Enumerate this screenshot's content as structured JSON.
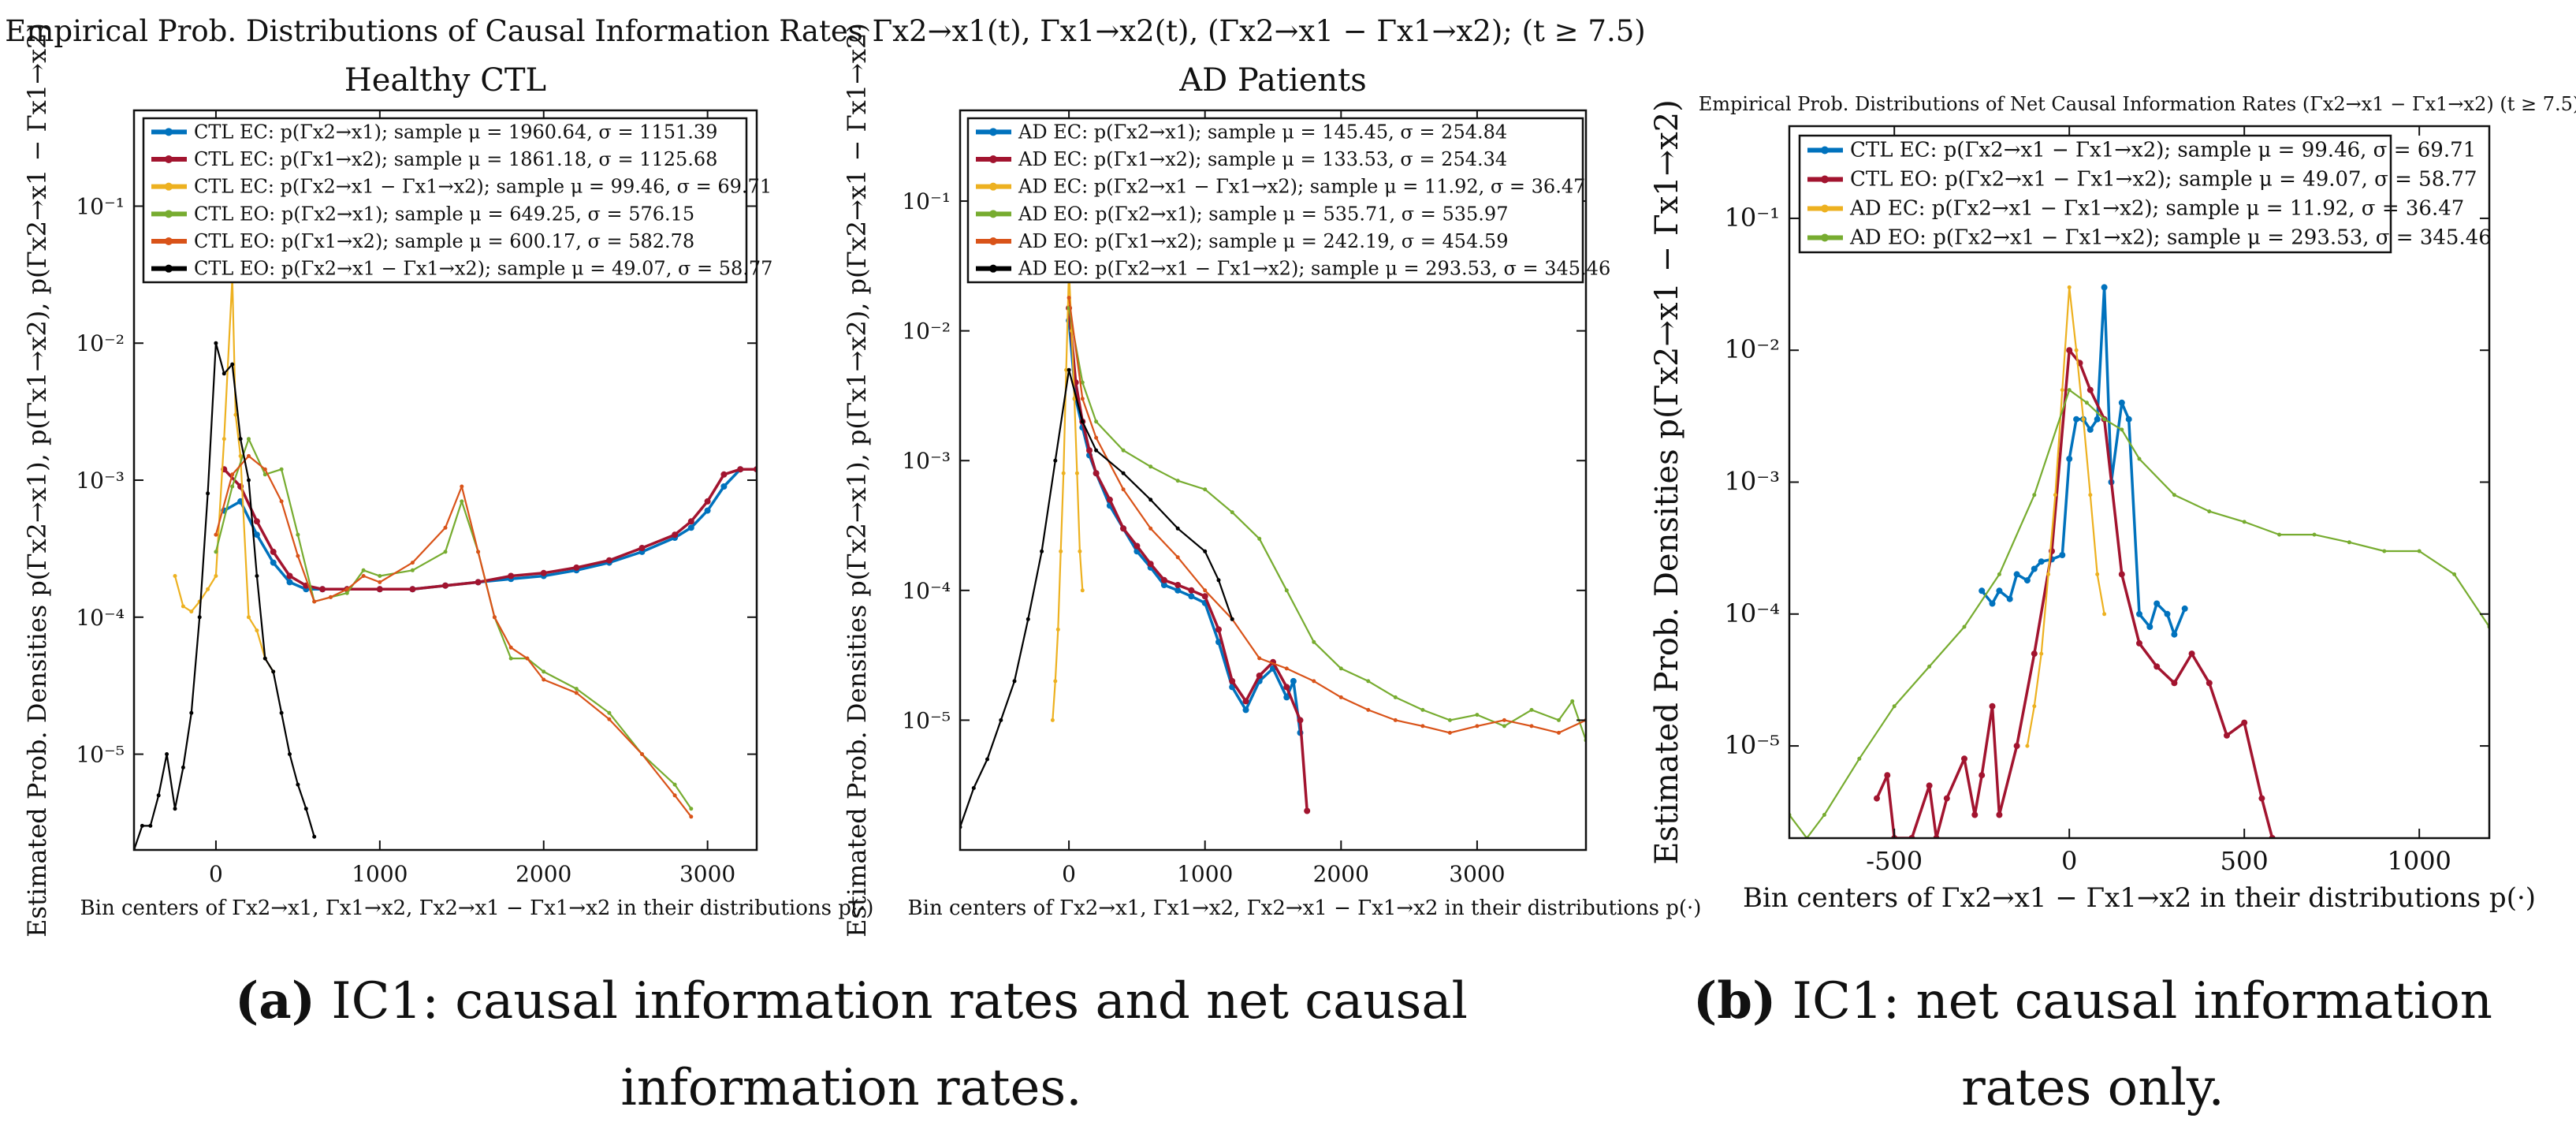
{
  "suptitle": "Empirical Prob. Distributions of Causal Information Rates Γx2→x1(t), Γx1→x2(t), (Γx2→x1 − Γx1→x2); (t ≥ 7.5)",
  "captions": [
    {
      "tag": "(a)",
      "text": "IC1: causal information rates and net causal information rates."
    },
    {
      "tag": "(b)",
      "text": "IC1: net causal information rates only."
    }
  ],
  "chart_data": [
    {
      "type": "line",
      "title": "Healthy CTL",
      "xlabel": "Bin centers of Γx2→x1, Γx1→x2, Γx2→x1 − Γx1→x2 in their distributions p(·)",
      "ylabel": "Estimated Prob. Densities p(Γx2→x1), p(Γx1→x2), p(Γx2→x1 − Γx1→x2)",
      "yscale": "log",
      "xlim": [
        -500,
        3300
      ],
      "ylim": [
        2e-06,
        0.5
      ],
      "xticks": [
        0,
        1000,
        2000,
        3000
      ],
      "yticks": [
        1e-05,
        0.0001,
        0.001,
        0.01,
        0.1
      ],
      "ytick_labels": [
        "10⁻⁵",
        "10⁻⁴",
        "10⁻³",
        "10⁻²",
        "10⁻¹"
      ],
      "legend_position": "top",
      "series": [
        {
          "name": "CTL EC: p(Γx2→x1); sample μ = 1960.64, σ = 1151.39",
          "color": "#0072BD",
          "x": [
            50,
            150,
            250,
            350,
            450,
            550,
            650,
            800,
            1000,
            1200,
            1400,
            1600,
            1800,
            2000,
            2200,
            2400,
            2600,
            2800,
            2900,
            3000,
            3100,
            3200,
            3300
          ],
          "y": [
            0.0006,
            0.0007,
            0.0004,
            0.00025,
            0.00018,
            0.00016,
            0.00016,
            0.00016,
            0.00016,
            0.00016,
            0.00017,
            0.00018,
            0.00019,
            0.0002,
            0.00022,
            0.00025,
            0.0003,
            0.00038,
            0.00045,
            0.0006,
            0.0009,
            0.0012,
            0.0012
          ]
        },
        {
          "name": "CTL EC: p(Γx1→x2); sample μ = 1861.18, σ = 1125.68",
          "color": "#A2142F",
          "x": [
            50,
            150,
            250,
            350,
            450,
            550,
            650,
            800,
            1000,
            1200,
            1400,
            1600,
            1800,
            2000,
            2200,
            2400,
            2600,
            2800,
            2900,
            3000,
            3100,
            3200,
            3300
          ],
          "y": [
            0.0012,
            0.0009,
            0.0005,
            0.0003,
            0.0002,
            0.00017,
            0.00016,
            0.00016,
            0.00016,
            0.00016,
            0.00017,
            0.00018,
            0.0002,
            0.00021,
            0.00023,
            0.00026,
            0.00032,
            0.0004,
            0.0005,
            0.0007,
            0.0011,
            0.0012,
            0.0012
          ]
        },
        {
          "name": "CTL EC: p(Γx2→x1 − Γx1→x2); sample μ = 99.46, σ = 69.71",
          "color": "#EDB120",
          "x": [
            -250,
            -200,
            -150,
            -100,
            -50,
            0,
            50,
            100,
            120,
            150,
            200,
            250,
            300,
            350
          ],
          "y": [
            0.0002,
            0.00012,
            0.00011,
            0.00013,
            0.00016,
            0.0002,
            0.002,
            0.03,
            0.003,
            0.0015,
            0.0001,
            8e-05,
            5e-05,
            4e-05
          ]
        },
        {
          "name": "CTL EO: p(Γx2→x1); sample μ = 649.25, σ = 576.15",
          "color": "#77AC30",
          "x": [
            0,
            100,
            200,
            300,
            400,
            500,
            600,
            700,
            800,
            900,
            1000,
            1200,
            1400,
            1500,
            1600,
            1700,
            1800,
            1900,
            2000,
            2200,
            2400,
            2600,
            2800,
            2900
          ],
          "y": [
            0.0003,
            0.0009,
            0.002,
            0.0011,
            0.0012,
            0.0004,
            0.00013,
            0.00014,
            0.00015,
            0.00022,
            0.0002,
            0.00022,
            0.0003,
            0.0007,
            0.0003,
            0.0001,
            5e-05,
            5e-05,
            4e-05,
            3e-05,
            2e-05,
            1e-05,
            6e-06,
            4e-06
          ]
        },
        {
          "name": "CTL EO: p(Γx1→x2); sample μ = 600.17, σ = 582.78",
          "color": "#D95319",
          "x": [
            0,
            100,
            200,
            300,
            400,
            500,
            600,
            700,
            800,
            900,
            1000,
            1200,
            1400,
            1500,
            1600,
            1700,
            1800,
            1900,
            2000,
            2200,
            2400,
            2600,
            2800,
            2900
          ],
          "y": [
            0.0004,
            0.0011,
            0.0015,
            0.0012,
            0.0007,
            0.00028,
            0.00013,
            0.00014,
            0.00016,
            0.0002,
            0.00018,
            0.00025,
            0.00045,
            0.0009,
            0.0003,
            0.0001,
            6e-05,
            5e-05,
            3.5e-05,
            2.8e-05,
            1.8e-05,
            1e-05,
            5e-06,
            3.5e-06
          ]
        },
        {
          "name": "CTL EO: p(Γx2→x1 − Γx1→x2); sample μ = 49.07, σ = 58.77",
          "color": "#000000",
          "x": [
            -500,
            -450,
            -400,
            -350,
            -300,
            -250,
            -200,
            -150,
            -100,
            -50,
            0,
            50,
            100,
            150,
            200,
            250,
            300,
            350,
            400,
            450,
            500,
            550,
            600
          ],
          "y": [
            2e-06,
            3e-06,
            3e-06,
            5e-06,
            1e-05,
            4e-06,
            8e-06,
            2e-05,
            0.0001,
            0.0008,
            0.01,
            0.006,
            0.007,
            0.002,
            0.001,
            0.0002,
            5e-05,
            4e-05,
            2e-05,
            1e-05,
            6e-06,
            4e-06,
            2.5e-06
          ]
        }
      ]
    },
    {
      "type": "line",
      "title": "AD Patients",
      "xlabel": "Bin centers of Γx2→x1, Γx1→x2, Γx2→x1 − Γx1→x2 in their distributions p(·)",
      "ylabel": "Estimated Prob. Densities p(Γx2→x1), p(Γx1→x2), p(Γx2→x1 − Γx1→x2)",
      "yscale": "log",
      "xlim": [
        -800,
        3800
      ],
      "ylim": [
        1e-06,
        0.5
      ],
      "xticks": [
        0,
        1000,
        2000,
        3000
      ],
      "yticks": [
        1e-05,
        0.0001,
        0.001,
        0.01,
        0.1
      ],
      "ytick_labels": [
        "10⁻⁵",
        "10⁻⁴",
        "10⁻³",
        "10⁻²",
        "10⁻¹"
      ],
      "legend_position": "top",
      "series": [
        {
          "name": "AD EC: p(Γx2→x1); sample μ = 145.45, σ = 254.84",
          "color": "#0072BD",
          "x": [
            0,
            50,
            100,
            150,
            200,
            300,
            400,
            500,
            600,
            700,
            800,
            900,
            1000,
            1100,
            1200,
            1300,
            1400,
            1500,
            1600,
            1650,
            1700
          ],
          "y": [
            0.012,
            0.003,
            0.0018,
            0.0011,
            0.0008,
            0.00045,
            0.0003,
            0.0002,
            0.00015,
            0.00011,
            0.0001,
            9e-05,
            8e-05,
            4e-05,
            1.8e-05,
            1.2e-05,
            2e-05,
            2.5e-05,
            1.5e-05,
            2e-05,
            8e-06
          ]
        },
        {
          "name": "AD EC: p(Γx1→x2); sample μ = 133.53, σ = 254.34",
          "color": "#A2142F",
          "x": [
            0,
            50,
            100,
            150,
            200,
            300,
            400,
            500,
            600,
            700,
            800,
            900,
            1000,
            1100,
            1200,
            1300,
            1400,
            1500,
            1600,
            1700,
            1750
          ],
          "y": [
            0.015,
            0.004,
            0.002,
            0.0012,
            0.0008,
            0.0005,
            0.0003,
            0.00022,
            0.00016,
            0.00012,
            0.00011,
            0.0001,
            9e-05,
            5e-05,
            2e-05,
            1.4e-05,
            2.2e-05,
            2.8e-05,
            1.8e-05,
            1e-05,
            2e-06
          ]
        },
        {
          "name": "AD EC: p(Γx2→x1 − Γx1→x2); sample μ = 11.92, σ = 36.47",
          "color": "#EDB120",
          "x": [
            -120,
            -100,
            -80,
            -60,
            -40,
            -20,
            0,
            20,
            40,
            60,
            80,
            100
          ],
          "y": [
            1e-05,
            2e-05,
            5e-05,
            0.0002,
            0.0008,
            0.005,
            0.03,
            0.01,
            0.003,
            0.0008,
            0.0002,
            0.0001
          ]
        },
        {
          "name": "AD EO: p(Γx2→x1); sample μ = 535.71, σ = 535.97",
          "color": "#77AC30",
          "x": [
            0,
            100,
            200,
            400,
            600,
            800,
            1000,
            1200,
            1400,
            1600,
            1800,
            2000,
            2200,
            2400,
            2600,
            2800,
            3000,
            3200,
            3400,
            3600,
            3700,
            3800
          ],
          "y": [
            0.015,
            0.004,
            0.002,
            0.0012,
            0.0009,
            0.0007,
            0.0006,
            0.0004,
            0.00025,
            0.0001,
            4e-05,
            2.5e-05,
            2e-05,
            1.5e-05,
            1.2e-05,
            1e-05,
            1.1e-05,
            9e-06,
            1.2e-05,
            1e-05,
            1.4e-05,
            7e-06
          ]
        },
        {
          "name": "AD EO: p(Γx1→x2); sample μ = 242.19, σ = 454.59",
          "color": "#D95319",
          "x": [
            0,
            100,
            200,
            400,
            600,
            800,
            1000,
            1200,
            1400,
            1600,
            1800,
            2000,
            2200,
            2400,
            2600,
            2800,
            3000,
            3200,
            3400,
            3600,
            3800
          ],
          "y": [
            0.018,
            0.003,
            0.0015,
            0.0006,
            0.0003,
            0.00018,
            0.0001,
            6e-05,
            3e-05,
            2.5e-05,
            2e-05,
            1.5e-05,
            1.2e-05,
            1e-05,
            9e-06,
            8e-06,
            9e-06,
            1e-05,
            9e-06,
            8e-06,
            1e-05
          ]
        },
        {
          "name": "AD EO: p(Γx2→x1 − Γx1→x2); sample μ = 293.53, σ = 345.46",
          "color": "#000000",
          "x": [
            -800,
            -700,
            -600,
            -500,
            -400,
            -300,
            -200,
            -100,
            0,
            100,
            200,
            400,
            600,
            800,
            1000,
            1100,
            1200
          ],
          "y": [
            1.5e-06,
            3e-06,
            5e-06,
            1e-05,
            2e-05,
            6e-05,
            0.0002,
            0.001,
            0.005,
            0.002,
            0.0012,
            0.0008,
            0.0005,
            0.0003,
            0.0002,
            0.00012,
            6e-05
          ]
        }
      ]
    },
    {
      "type": "line",
      "title": "Empirical Prob. Distributions of Net Causal Information Rates (Γx2→x1 − Γx1→x2) (t ≥ 7.5)",
      "xlabel": "Bin centers of Γx2→x1 − Γx1→x2 in their distributions p(·)",
      "ylabel": "Estimated Prob. Densities p(Γx2→x1 − Γx1→x2)",
      "yscale": "log",
      "xlim": [
        -800,
        1200
      ],
      "ylim": [
        2e-06,
        0.5
      ],
      "xticks": [
        -500,
        0,
        500,
        1000
      ],
      "yticks": [
        1e-05,
        0.0001,
        0.001,
        0.01,
        0.1
      ],
      "ytick_labels": [
        "10⁻⁵",
        "10⁻⁴",
        "10⁻³",
        "10⁻²",
        "10⁻¹"
      ],
      "legend_position": "top",
      "series": [
        {
          "name": "CTL EC: p(Γx2→x1 − Γx1→x2); sample μ = 99.46, σ = 69.71",
          "color": "#0072BD",
          "x": [
            -250,
            -220,
            -200,
            -170,
            -150,
            -120,
            -100,
            -80,
            -50,
            -20,
            0,
            20,
            40,
            60,
            80,
            100,
            120,
            150,
            170,
            200,
            230,
            250,
            280,
            300,
            330
          ],
          "y": [
            0.00015,
            0.00012,
            0.00015,
            0.00013,
            0.0002,
            0.00018,
            0.00022,
            0.00025,
            0.00026,
            0.00028,
            0.0015,
            0.003,
            0.003,
            0.0025,
            0.003,
            0.03,
            0.001,
            0.004,
            0.003,
            0.0001,
            8e-05,
            0.00012,
            0.0001,
            7e-05,
            0.00011
          ]
        },
        {
          "name": "CTL EO: p(Γx2→x1 − Γx1→x2); sample μ = 49.07, σ = 58.77",
          "color": "#A2142F",
          "x": [
            -550,
            -520,
            -500,
            -450,
            -400,
            -380,
            -350,
            -300,
            -270,
            -250,
            -220,
            -200,
            -150,
            -100,
            -50,
            0,
            30,
            60,
            100,
            150,
            200,
            250,
            300,
            350,
            400,
            450,
            500,
            550,
            580
          ],
          "y": [
            4e-06,
            6e-06,
            2e-06,
            2e-06,
            5e-06,
            2e-06,
            4e-06,
            8e-06,
            3e-06,
            6e-06,
            2e-05,
            3e-06,
            1e-05,
            5e-05,
            0.0003,
            0.01,
            0.008,
            0.005,
            0.003,
            0.0002,
            6e-05,
            4e-05,
            3e-05,
            5e-05,
            3e-05,
            1.2e-05,
            1.5e-05,
            4e-06,
            2e-06
          ]
        },
        {
          "name": "AD EC: p(Γx2→x1 − Γx1→x2); sample μ = 11.92, σ = 36.47",
          "color": "#EDB120",
          "x": [
            -120,
            -100,
            -80,
            -60,
            -40,
            -20,
            0,
            20,
            40,
            60,
            80,
            100
          ],
          "y": [
            1e-05,
            2e-05,
            5e-05,
            0.0002,
            0.0008,
            0.005,
            0.03,
            0.01,
            0.003,
            0.0008,
            0.0002,
            0.0001
          ]
        },
        {
          "name": "AD EO: p(Γx2→x1 − Γx1→x2); sample μ = 293.53, σ = 345.46",
          "color": "#77AC30",
          "x": [
            -800,
            -750,
            -700,
            -600,
            -500,
            -400,
            -300,
            -200,
            -100,
            0,
            50,
            100,
            150,
            200,
            300,
            400,
            500,
            600,
            700,
            800,
            900,
            1000,
            1100,
            1200
          ],
          "y": [
            3e-06,
            1.5e-06,
            3e-06,
            8e-06,
            2e-05,
            4e-05,
            8e-05,
            0.0002,
            0.0008,
            0.005,
            0.004,
            0.003,
            0.0025,
            0.0015,
            0.0008,
            0.0006,
            0.0005,
            0.0004,
            0.0004,
            0.00035,
            0.0003,
            0.0003,
            0.0002,
            8e-05
          ]
        }
      ]
    }
  ]
}
